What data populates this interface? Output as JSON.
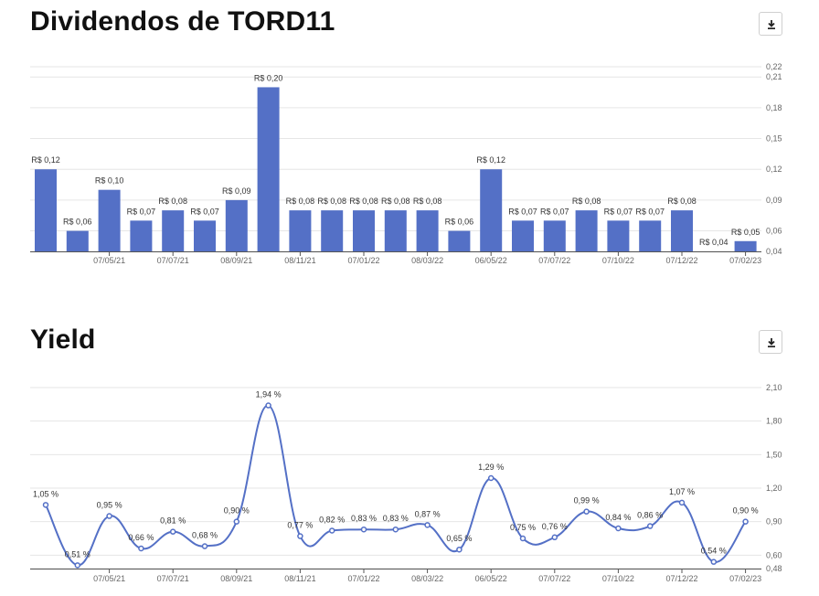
{
  "sections": {
    "dividends_title": "Dividendos de TORD11",
    "yield_title": "Yield"
  },
  "icons": {
    "download": "download-icon"
  },
  "colors": {
    "bar": "#5470c6",
    "line": "#5470c6",
    "grid": "#e6e6e6"
  },
  "chart_data": [
    {
      "type": "bar",
      "title": "Dividendos de TORD11",
      "x_tick_labels": [
        "07/05/21",
        "07/07/21",
        "08/09/21",
        "08/11/21",
        "07/01/22",
        "08/03/22",
        "06/05/22",
        "07/07/22",
        "07/10/22",
        "07/12/22",
        "07/02/23"
      ],
      "values": [
        0.12,
        0.06,
        0.1,
        0.07,
        0.08,
        0.07,
        0.09,
        0.2,
        0.08,
        0.08,
        0.08,
        0.08,
        0.08,
        0.06,
        0.12,
        0.07,
        0.07,
        0.08,
        0.07,
        0.07,
        0.08,
        0.04,
        0.05
      ],
      "data_labels": [
        "R$ 0,12",
        "R$ 0,06",
        "R$ 0,10",
        "R$ 0,07",
        "R$ 0,08",
        "R$ 0,07",
        "R$ 0,09",
        "R$ 0,20",
        "R$ 0,08",
        "R$ 0,08",
        "R$ 0,08",
        "R$ 0,08",
        "R$ 0,08",
        "R$ 0,06",
        "R$ 0,12",
        "R$ 0,07",
        "R$ 0,07",
        "R$ 0,08",
        "R$ 0,07",
        "R$ 0,07",
        "R$ 0,08",
        "R$ 0,04",
        "R$ 0,05"
      ],
      "y_ticks": [
        "0,04",
        "0,06",
        "0,09",
        "0,12",
        "0,15",
        "0,18",
        "0,21",
        "0,22"
      ],
      "ylim": [
        0.04,
        0.22
      ],
      "y_axis_position": "right",
      "grid": true
    },
    {
      "type": "line",
      "title": "Yield",
      "x_tick_labels": [
        "07/05/21",
        "07/07/21",
        "08/09/21",
        "08/11/21",
        "07/01/22",
        "08/03/22",
        "06/05/22",
        "07/07/22",
        "07/10/22",
        "07/12/22",
        "07/02/23"
      ],
      "values": [
        1.05,
        0.51,
        0.95,
        0.66,
        0.81,
        0.68,
        0.9,
        1.94,
        0.77,
        0.82,
        0.83,
        0.83,
        0.87,
        0.65,
        1.29,
        0.75,
        0.76,
        0.99,
        0.84,
        0.86,
        1.07,
        0.54,
        0.9
      ],
      "data_labels": [
        "1,05 %",
        "0,51 %",
        "0,95 %",
        "0,66 %",
        "0,81 %",
        "0,68 %",
        "0,90 %",
        "1,94 %",
        "0,77 %",
        "0,82 %",
        "0,83 %",
        "0,83 %",
        "0,87 %",
        "0,65 %",
        "1,29 %",
        "0,75 %",
        "0,76 %",
        "0,99 %",
        "0,84 %",
        "0,86 %",
        "1,07 %",
        "0,54 %",
        "0,90 %"
      ],
      "y_ticks": [
        "0,48",
        "0,60",
        "0,90",
        "1,20",
        "1,50",
        "1,80",
        "2,10"
      ],
      "ylim": [
        0.48,
        2.1
      ],
      "y_axis_position": "right",
      "grid": true,
      "smooth": true
    }
  ]
}
